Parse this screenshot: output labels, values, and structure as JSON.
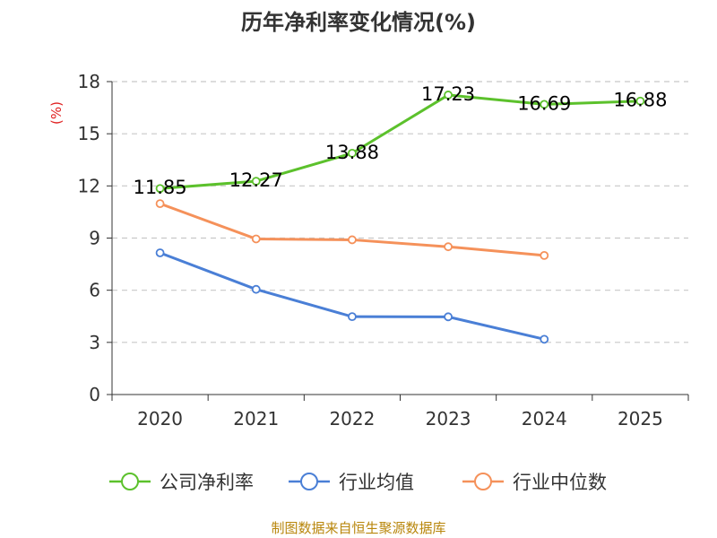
{
  "chart_data": {
    "type": "line",
    "title": "历年净利率变化情况(%)",
    "ylabel": "(%)",
    "xlabel": "",
    "categories": [
      "2020",
      "2021",
      "2022",
      "2023",
      "2024",
      "2025"
    ],
    "ylim": [
      0,
      18
    ],
    "yticks": [
      0,
      3,
      6,
      9,
      12,
      15,
      18
    ],
    "grid": true,
    "legend_position": "bottom",
    "series": [
      {
        "name": "公司净利率",
        "color": "#5cc12c",
        "values": [
          11.85,
          12.27,
          13.88,
          17.23,
          16.69,
          16.88
        ],
        "labels": [
          "11.85",
          "12.27",
          "13.88",
          "17.23",
          "16.69",
          "16.88"
        ],
        "show_labels": true
      },
      {
        "name": "行业均值",
        "color": "#4a7fd6",
        "values": [
          8.15,
          6.05,
          4.48,
          4.47,
          3.18,
          null
        ],
        "show_labels": false
      },
      {
        "name": "行业中位数",
        "color": "#f5915a",
        "values": [
          10.98,
          8.95,
          8.9,
          8.5,
          8.0,
          null
        ],
        "show_labels": false
      }
    ]
  },
  "source": "制图数据来自恒生聚源数据库"
}
